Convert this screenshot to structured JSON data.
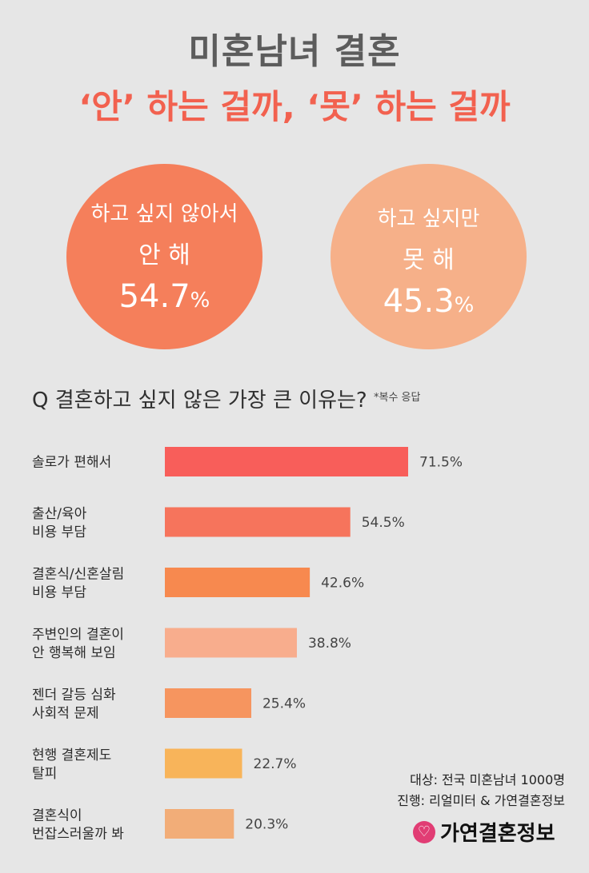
{
  "title": "미혼남녀 결혼",
  "subtitle": "‘안’ 하는 걸까, ‘못’ 하는 걸까",
  "circles": [
    {
      "line1": "하고 싶지 않아서",
      "line2": "안 해",
      "pct_num": "54.7",
      "pct_sign": "%",
      "color": "#f57f5b"
    },
    {
      "line1": "하고 싶지만",
      "line2": "못 해",
      "pct_num": "45.3",
      "pct_sign": "%",
      "color": "#f6b089"
    }
  ],
  "question": "Q 결혼하고 싶지 않은 가장 큰 이유는?",
  "question_note": "*복수 응답",
  "chart_data": {
    "type": "bar",
    "orientation": "horizontal",
    "categories": [
      [
        "솔로가 편해서"
      ],
      [
        "출산/육아",
        "비용 부담"
      ],
      [
        "결혼식/신혼살림",
        "비용 부담"
      ],
      [
        "주변인의 결혼이",
        "안 행복해 보임"
      ],
      [
        "젠더 갈등 심화",
        "사회적 문제"
      ],
      [
        "현행 결혼제도",
        "탈피"
      ],
      [
        "결혼식이",
        "번잡스러울까 봐"
      ]
    ],
    "values": [
      71.5,
      54.5,
      42.6,
      38.8,
      25.4,
      22.7,
      20.3
    ],
    "value_labels": [
      "71.5%",
      "54.5%",
      "42.6%",
      "38.8%",
      "25.4%",
      "22.7%",
      "20.3%"
    ],
    "colors": [
      "#f85e5a",
      "#f6745c",
      "#f7894f",
      "#f8ad8d",
      "#f6955f",
      "#f8b45a",
      "#f2ad78"
    ],
    "xlim": [
      0,
      71.5
    ]
  },
  "footer": {
    "target": "대상: 전국 미혼남녀 1000명",
    "run": "진행: 리얼미터 & 가연결혼정보"
  },
  "logo": {
    "icon": "logo-icon",
    "text": "가연결혼정보",
    "color": "#e13d74"
  }
}
